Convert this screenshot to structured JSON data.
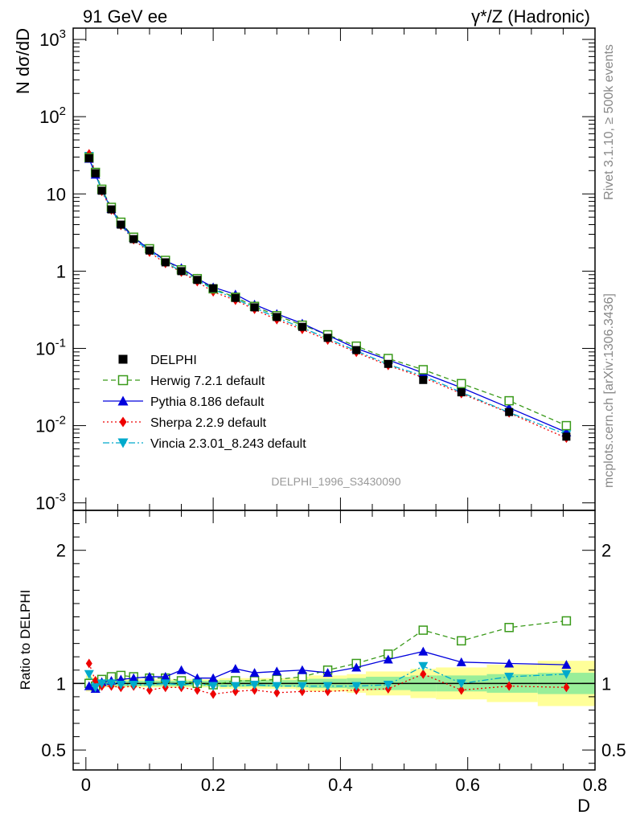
{
  "header": {
    "left_title": "91 GeV ee",
    "right_title": "γ*/Z (Hadronic)"
  },
  "side_labels": {
    "rivet": "Rivet 3.1.10, ≥ 500k events",
    "mcplots": "mcplots.cern.ch [arXiv:1306.3436]"
  },
  "watermark": "DELPHI_1996_S3430090",
  "chart_data": [
    {
      "type": "line",
      "panel": "main",
      "title": "91 GeV ee",
      "xlabel": "D",
      "ylabel": "N dσ/dD",
      "yscale": "log",
      "xlim": [
        -0.02,
        0.8
      ],
      "ylim": [
        0.0008,
        1400
      ],
      "y_tick_labels": [
        "10^-3",
        "10^-2",
        "10^-1",
        "1",
        "10",
        "10^2",
        "10^3"
      ],
      "x": [
        0.005,
        0.015,
        0.025,
        0.04,
        0.055,
        0.075,
        0.1,
        0.125,
        0.15,
        0.175,
        0.2,
        0.235,
        0.265,
        0.3,
        0.34,
        0.38,
        0.425,
        0.475,
        0.53,
        0.59,
        0.665,
        0.755
      ],
      "series": [
        {
          "name": "DELPHI",
          "color": "#000000",
          "marker": "square",
          "values": [
            29,
            18.5,
            11,
            6.3,
            4.0,
            2.6,
            1.85,
            1.3,
            1.0,
            0.77,
            0.6,
            0.45,
            0.34,
            0.255,
            0.19,
            0.137,
            0.095,
            0.063,
            0.039,
            0.027,
            0.015,
            0.0072
          ]
        },
        {
          "name": "Herwig 7.2.1 default",
          "color": "#3a9a1a",
          "marker": "open-square",
          "dash": "6,4",
          "values": [
            29.5,
            19.0,
            11.5,
            6.7,
            4.3,
            2.75,
            1.95,
            1.38,
            1.04,
            0.8,
            0.59,
            0.46,
            0.35,
            0.265,
            0.2,
            0.15,
            0.107,
            0.074,
            0.053,
            0.035,
            0.021,
            0.01
          ]
        },
        {
          "name": "Pythia 8.186 default",
          "color": "#0000dd",
          "marker": "triangle-up",
          "values": [
            28.5,
            17.8,
            11.2,
            6.4,
            4.1,
            2.7,
            1.92,
            1.36,
            1.1,
            0.8,
            0.62,
            0.5,
            0.37,
            0.28,
            0.21,
            0.148,
            0.1,
            0.071,
            0.048,
            0.031,
            0.017,
            0.0082
          ]
        },
        {
          "name": "Sherpa 2.2.9 default",
          "color": "#ee0000",
          "marker": "diamond",
          "dash": "2,3",
          "values": [
            33,
            18.8,
            10.8,
            6.2,
            3.9,
            2.55,
            1.76,
            1.26,
            0.97,
            0.73,
            0.54,
            0.42,
            0.32,
            0.235,
            0.176,
            0.128,
            0.089,
            0.06,
            0.042,
            0.026,
            0.0146,
            0.0069
          ]
        },
        {
          "name": "Vincia 2.3.01_8.243 default",
          "color": "#00aacc",
          "marker": "triangle-down",
          "dash": "8,3,2,3",
          "values": [
            31,
            18.0,
            11.2,
            6.3,
            3.95,
            2.58,
            1.84,
            1.3,
            0.99,
            0.77,
            0.58,
            0.44,
            0.335,
            0.25,
            0.185,
            0.134,
            0.093,
            0.062,
            0.044,
            0.027,
            0.0148,
            0.0077
          ]
        }
      ]
    },
    {
      "type": "line",
      "panel": "ratio",
      "xlabel": "D",
      "ylabel": "Ratio to DELPHI",
      "xlim": [
        -0.02,
        0.8
      ],
      "ylim": [
        0.35,
        2.3
      ],
      "x_tick_labels": [
        "0",
        "0.2",
        "0.4",
        "0.6",
        "0.8"
      ],
      "y_tick_labels": [
        "0.5",
        "1",
        "2"
      ],
      "x": [
        0.005,
        0.015,
        0.025,
        0.04,
        0.055,
        0.075,
        0.1,
        0.125,
        0.15,
        0.175,
        0.2,
        0.235,
        0.265,
        0.3,
        0.34,
        0.38,
        0.425,
        0.475,
        0.53,
        0.59,
        0.665,
        0.755
      ],
      "band_edges": [
        0,
        0.01,
        0.02,
        0.03,
        0.05,
        0.06,
        0.09,
        0.11,
        0.14,
        0.16,
        0.19,
        0.21,
        0.26,
        0.27,
        0.33,
        0.35,
        0.41,
        0.44,
        0.51,
        0.55,
        0.63,
        0.71,
        0.8
      ],
      "band_1sigma": [
        0.04,
        0.03,
        0.025,
        0.02,
        0.02,
        0.02,
        0.02,
        0.02,
        0.02,
        0.02,
        0.02,
        0.025,
        0.025,
        0.025,
        0.03,
        0.035,
        0.04,
        0.05,
        0.06,
        0.06,
        0.07,
        0.08
      ],
      "band_2sigma": [
        0.06,
        0.045,
        0.035,
        0.03,
        0.03,
        0.03,
        0.03,
        0.03,
        0.03,
        0.03,
        0.03,
        0.04,
        0.04,
        0.04,
        0.05,
        0.06,
        0.07,
        0.09,
        0.11,
        0.12,
        0.14,
        0.17
      ],
      "series": [
        {
          "name": "Herwig 7.2.1 default",
          "color": "#3a9a1a",
          "marker": "open-square",
          "dash": "6,4",
          "values": [
            1.0,
            0.98,
            1.03,
            1.05,
            1.06,
            1.05,
            1.04,
            1.04,
            1.02,
            1.0,
            0.99,
            1.02,
            1.02,
            1.03,
            1.05,
            1.1,
            1.15,
            1.22,
            1.4,
            1.32,
            1.42,
            1.47
          ]
        },
        {
          "name": "Pythia 8.186 default",
          "color": "#0000dd",
          "marker": "triangle-up",
          "values": [
            0.98,
            0.96,
            1.01,
            1.02,
            1.03,
            1.04,
            1.05,
            1.05,
            1.1,
            1.04,
            1.04,
            1.11,
            1.08,
            1.09,
            1.1,
            1.08,
            1.12,
            1.18,
            1.24,
            1.16,
            1.15,
            1.14
          ]
        },
        {
          "name": "Sherpa 2.2.9 default",
          "color": "#ee0000",
          "marker": "diamond",
          "dash": "2,3",
          "values": [
            1.15,
            1.02,
            0.98,
            0.98,
            0.97,
            0.98,
            0.95,
            0.97,
            0.97,
            0.95,
            0.92,
            0.94,
            0.95,
            0.93,
            0.94,
            0.94,
            0.95,
            0.96,
            1.07,
            0.95,
            0.98,
            0.97
          ]
        },
        {
          "name": "Vincia 2.3.01_8.243 default",
          "color": "#00aacc",
          "marker": "triangle-down",
          "dash": "8,3,2,3",
          "values": [
            1.07,
            0.97,
            1.0,
            1.0,
            0.99,
            0.99,
            0.99,
            1.0,
            0.99,
            1.0,
            0.98,
            0.98,
            0.99,
            0.98,
            0.98,
            0.98,
            0.98,
            0.99,
            1.13,
            1.0,
            1.05,
            1.07
          ]
        }
      ]
    }
  ]
}
